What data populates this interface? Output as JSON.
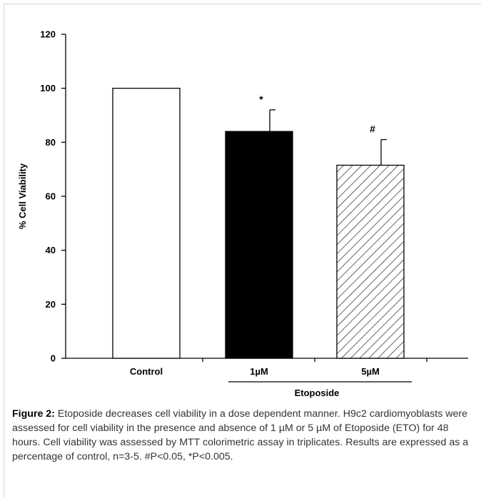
{
  "chart_data": {
    "type": "bar",
    "categories": [
      "Control",
      "1µM",
      "5µM"
    ],
    "values": [
      100,
      84,
      71.5
    ],
    "errors": [
      0,
      8,
      9.5
    ],
    "fills": [
      "white",
      "black",
      "hatch"
    ],
    "significance": [
      "",
      "*",
      "#"
    ],
    "ylabel": "% Cell Viability",
    "xlabel": "",
    "group_label": "Etoposide",
    "group_categories": [
      "1µM",
      "5µM"
    ],
    "ylim": [
      0,
      120
    ],
    "yticks": [
      0,
      20,
      40,
      60,
      80,
      100,
      120
    ],
    "grid": false
  },
  "caption": {
    "label": "Figure 2:",
    "text": "Etoposide decreases cell viability in a dose dependent manner. H9c2 cardiomyoblasts were assessed for cell viability in the presence and absence of 1 µM or 5 µM of Etoposide (ETO) for 48 hours. Cell viability was assessed by MTT colorimetric assay in triplicates. Results are expressed as a percentage of control, n=3-5. #P<0.05, *P<0.005."
  },
  "colors": {
    "bar_outline": "#000000",
    "bar_dark": "#000000",
    "bar_light": "#ffffff",
    "text": "#333333"
  }
}
